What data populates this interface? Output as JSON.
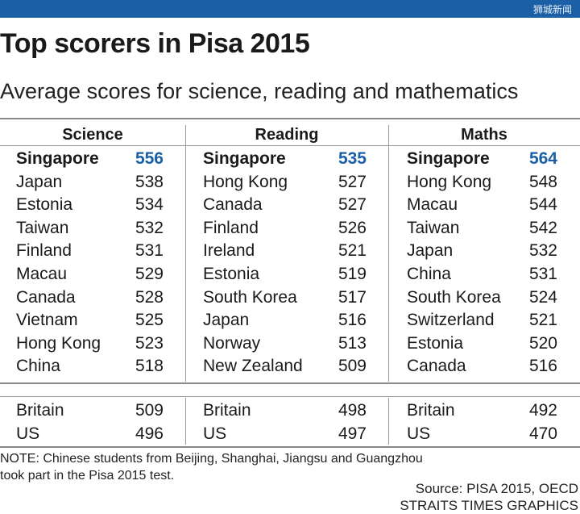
{
  "watermark": "狮城新闻",
  "accent_color": "#1b5fa6",
  "chart_data": {
    "type": "table",
    "title": "Top scorers in Pisa 2015",
    "subtitle": "Average scores for science, reading and mathematics",
    "columns": [
      {
        "name": "Science",
        "top": [
          {
            "country": "Singapore",
            "score": 556
          },
          {
            "country": "Japan",
            "score": 538
          },
          {
            "country": "Estonia",
            "score": 534
          },
          {
            "country": "Taiwan",
            "score": 532
          },
          {
            "country": "Finland",
            "score": 531
          },
          {
            "country": "Macau",
            "score": 529
          },
          {
            "country": "Canada",
            "score": 528
          },
          {
            "country": "Vietnam",
            "score": 525
          },
          {
            "country": "Hong Kong",
            "score": 523
          },
          {
            "country": "China",
            "score": 518
          }
        ],
        "others": [
          {
            "country": "Britain",
            "score": 509
          },
          {
            "country": "US",
            "score": 496
          }
        ]
      },
      {
        "name": "Reading",
        "top": [
          {
            "country": "Singapore",
            "score": 535
          },
          {
            "country": "Hong Kong",
            "score": 527
          },
          {
            "country": "Canada",
            "score": 527
          },
          {
            "country": "Finland",
            "score": 526
          },
          {
            "country": "Ireland",
            "score": 521
          },
          {
            "country": "Estonia",
            "score": 519
          },
          {
            "country": "South Korea",
            "score": 517
          },
          {
            "country": "Japan",
            "score": 516
          },
          {
            "country": "Norway",
            "score": 513
          },
          {
            "country": "New Zealand",
            "score": 509
          }
        ],
        "others": [
          {
            "country": "Britain",
            "score": 498
          },
          {
            "country": "US",
            "score": 497
          }
        ]
      },
      {
        "name": "Maths",
        "top": [
          {
            "country": "Singapore",
            "score": 564
          },
          {
            "country": "Hong Kong",
            "score": 548
          },
          {
            "country": "Macau",
            "score": 544
          },
          {
            "country": "Taiwan",
            "score": 542
          },
          {
            "country": "Japan",
            "score": 532
          },
          {
            "country": "China",
            "score": 531
          },
          {
            "country": "South Korea",
            "score": 524
          },
          {
            "country": "Switzerland",
            "score": 521
          },
          {
            "country": "Estonia",
            "score": 520
          },
          {
            "country": "Canada",
            "score": 516
          }
        ],
        "others": [
          {
            "country": "Britain",
            "score": 492
          },
          {
            "country": "US",
            "score": 470
          }
        ]
      }
    ],
    "note_line1": "NOTE: Chinese students from Beijing, Shanghai, Jiangsu and Guangzhou",
    "note_line2": "took part in the Pisa 2015 test.",
    "source_line1": "Source: PISA 2015, OECD",
    "source_line2": "STRAITS TIMES GRAPHICS"
  }
}
